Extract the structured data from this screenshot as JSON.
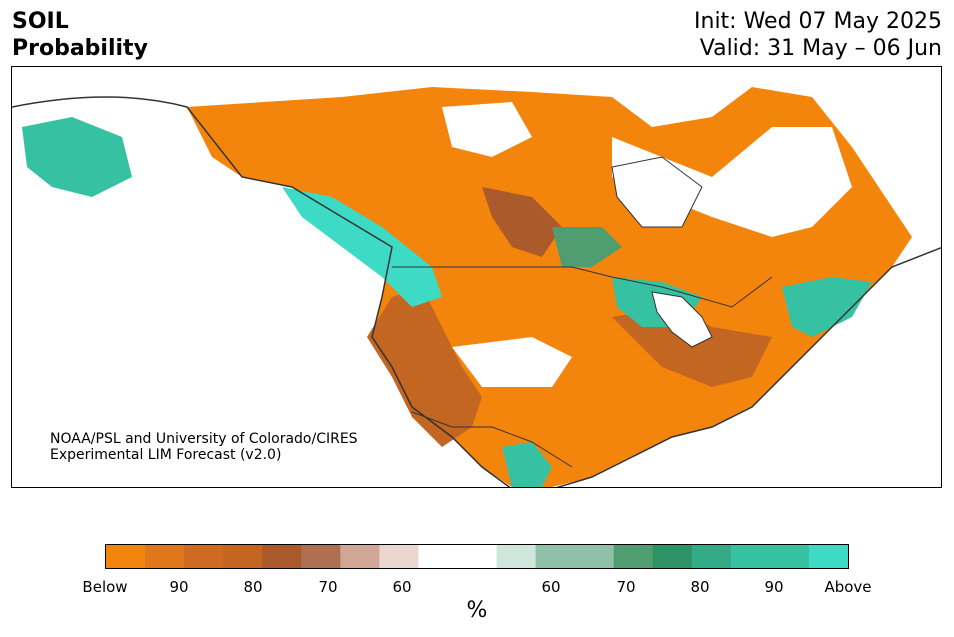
{
  "title": {
    "variable": "SOIL",
    "product": "Probability",
    "init": "Init: Wed 07 May 2025",
    "valid": "Valid: 31 May – 06 Jun"
  },
  "credit": {
    "line1": "NOAA/PSL and University of Colorado/CIRES",
    "line2": "Experimental LIM Forecast (v2.0)"
  },
  "colorbar": {
    "unit": "%",
    "colors": [
      "#f4850c",
      "#e0771a",
      "#cf6a22",
      "#c36621",
      "#ab5a2c",
      "#ae6f52",
      "#d2a695",
      "#e9d6cf",
      "#ffffff",
      "#ffffff",
      "#d0e6dd",
      "#91c0a8",
      "#91c0a8",
      "#4f9d70",
      "#2d9367",
      "#32ab86",
      "#36c1a2",
      "#36c1a2",
      "#3ddac6"
    ],
    "ticks": [
      "Below",
      "90",
      "80",
      "70",
      "60",
      "60",
      "70",
      "80",
      "90",
      "Above"
    ]
  },
  "legend_colors": {
    "below": "#f4850c",
    "above": "#3ddac6"
  }
}
